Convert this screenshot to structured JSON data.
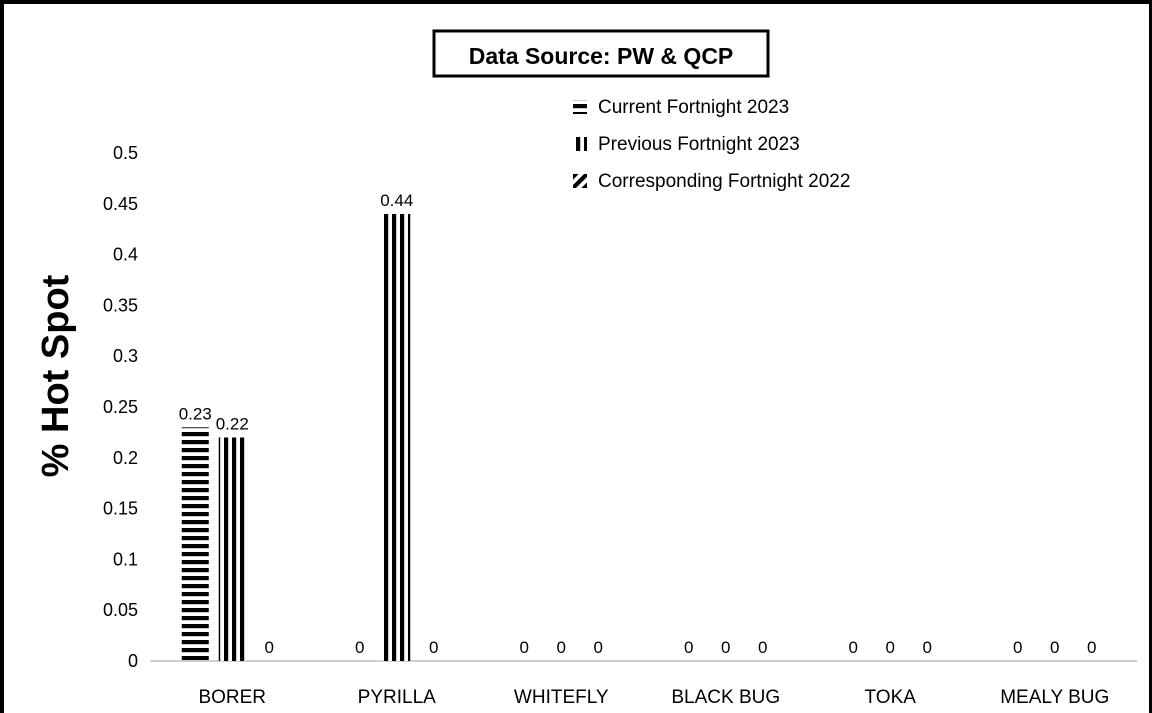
{
  "chart_data": {
    "type": "bar",
    "title": "Data Source: PW & QCP",
    "xlabel": "",
    "ylabel": "% Hot Spot",
    "categories": [
      "BORER",
      "PYRILLA",
      "WHITEFLY",
      "BLACK BUG",
      "TOKA",
      "MEALY BUG"
    ],
    "series": [
      {
        "name": "Current Fortnight 2023",
        "pattern": "horizontal-stripes",
        "values": [
          0.23,
          0,
          0,
          0,
          0,
          0
        ]
      },
      {
        "name": "Previous Fortnight 2023",
        "pattern": "vertical-stripes",
        "values": [
          0.22,
          0.44,
          0,
          0,
          0,
          0
        ]
      },
      {
        "name": "Corresponding Fortnight 2022",
        "pattern": "diagonal-stripes",
        "values": [
          0,
          0,
          0,
          0,
          0,
          0
        ]
      }
    ],
    "ylim": [
      0,
      0.5
    ],
    "yticks": [
      "0",
      "0.05",
      "0.1",
      "0.15",
      "0.2",
      "0.25",
      "0.3",
      "0.35",
      "0.4",
      "0.45",
      "0.5"
    ],
    "grid": false,
    "legend_position": "top-center",
    "colors": {
      "bar_stripe": "#000000",
      "background": "#ffffff",
      "axis": "#bfbfbf",
      "text": "#000000"
    }
  }
}
